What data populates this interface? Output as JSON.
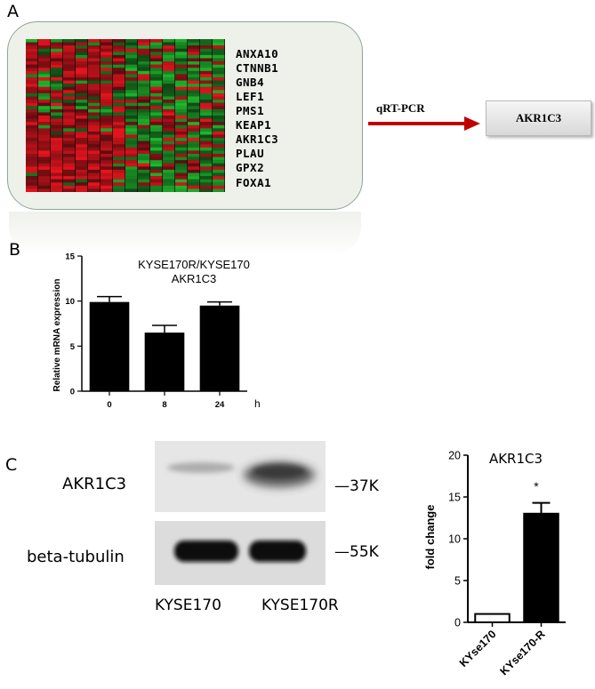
{
  "panel_a": {
    "letter": "A",
    "genes": [
      "ANXA10",
      "CTNNB1",
      "GNB4",
      "LEF1",
      "PMS1",
      "KEAP1",
      "AKR1C3",
      "PLAU",
      "GPX2",
      "FOXA1"
    ],
    "arrow_label": "qRT-PCR",
    "target_label": "AKR1C3",
    "colors": {
      "red": "#e8141e",
      "green": "#1fb82d",
      "dark": "#1a0a08",
      "arrow": "#c00000",
      "box_border": "#8fa59a",
      "box_fill": "#eef0ea"
    }
  },
  "panel_b": {
    "letter": "B"
  },
  "panel_c": {
    "letter": "C",
    "blot_labels": [
      "AKR1C3",
      "beta-tubulin"
    ],
    "mw_markers": [
      "—37K",
      "—55K"
    ],
    "lane_labels": [
      "KYSE170",
      "KYSE170R"
    ]
  },
  "chart_data": [
    {
      "type": "bar",
      "title": "KYSE170R/KYSE170",
      "subtitle": "AKR1C3",
      "ylabel": "Relative mRNA expression",
      "xlabel": "h",
      "categories": [
        "0",
        "8",
        "24"
      ],
      "values": [
        9.9,
        6.5,
        9.5
      ],
      "errors": [
        0.6,
        0.8,
        0.4
      ],
      "ylim": [
        0,
        15
      ],
      "yticks": [
        "0",
        "5",
        "10",
        "15"
      ],
      "bar_color": "#000000"
    },
    {
      "type": "bar",
      "title": "AKR1C3",
      "ylabel": "fold change",
      "categories": [
        "KYse170",
        "KYse170-R"
      ],
      "values": [
        1.0,
        13.0
      ],
      "errors": [
        0,
        1.3
      ],
      "ylim": [
        0,
        20
      ],
      "yticks": [
        "0",
        "5",
        "10",
        "15",
        "20"
      ],
      "significance": "*",
      "bar_fills": [
        "#ffffff",
        "#000000"
      ]
    }
  ]
}
